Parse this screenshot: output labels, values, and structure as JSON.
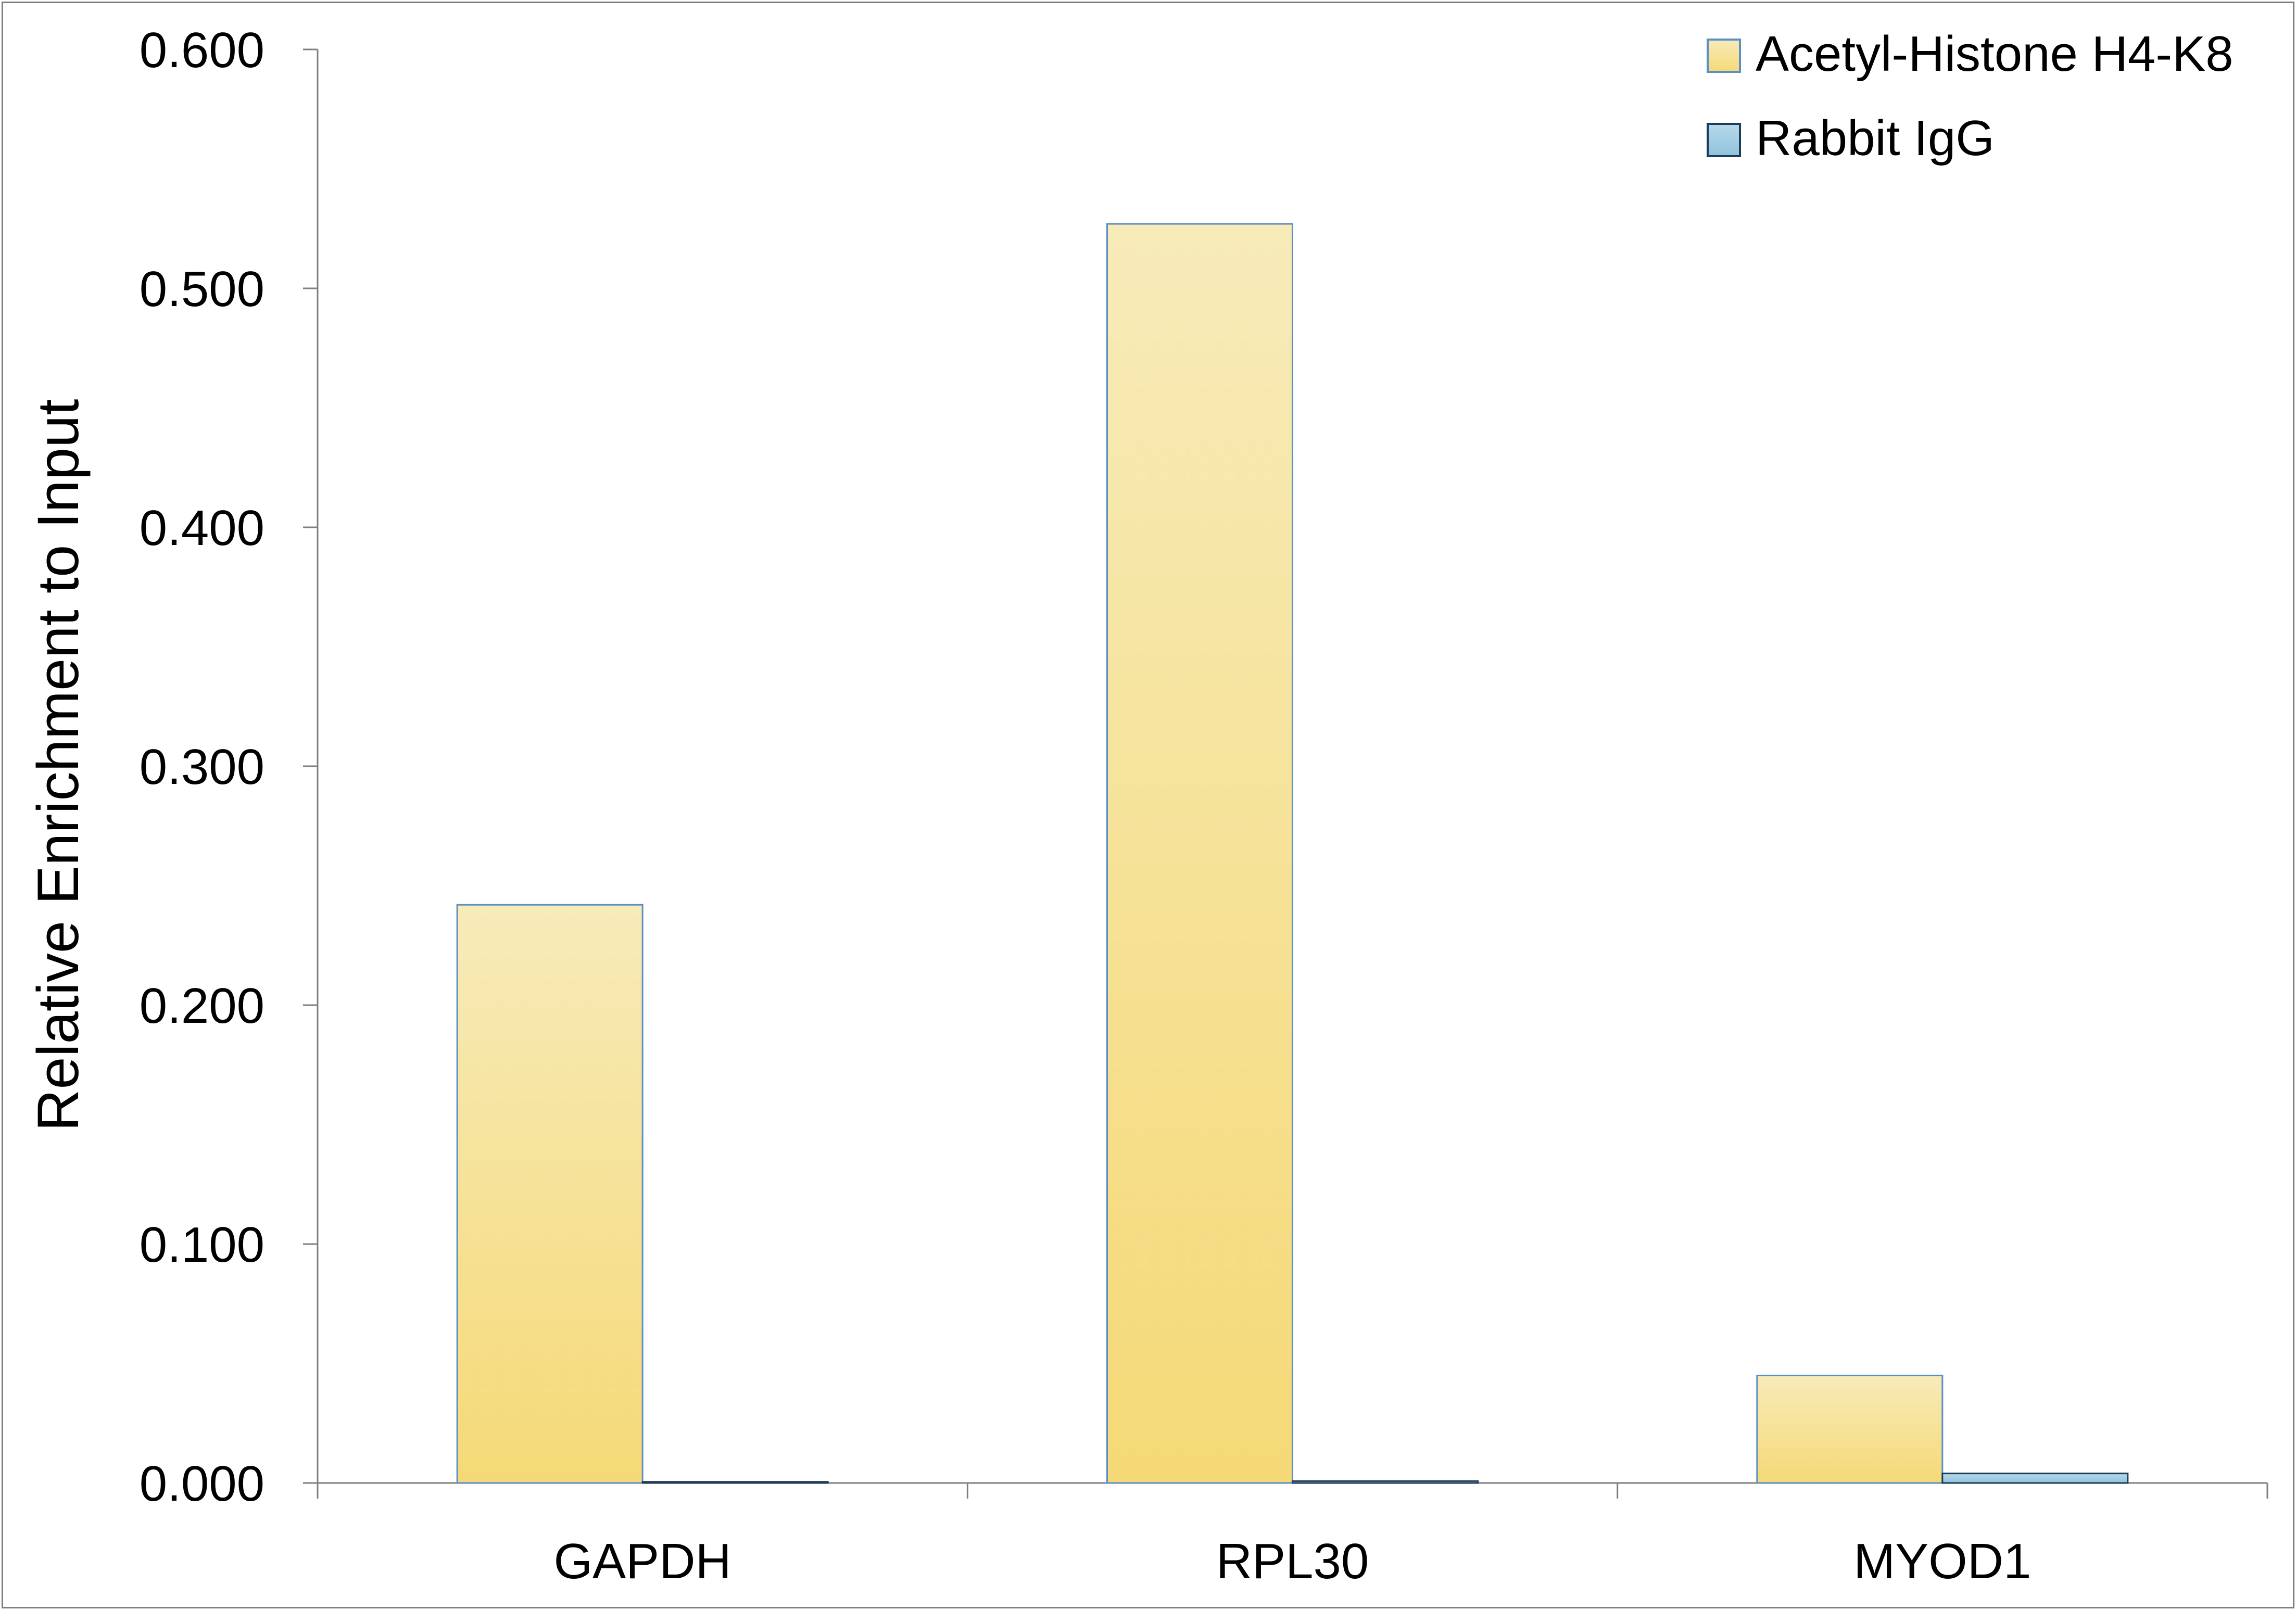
{
  "chart_data": {
    "type": "bar",
    "title": "",
    "xlabel": "",
    "ylabel": "Relative Enrichment to Input",
    "ylim": [
      0,
      0.6
    ],
    "yticks": [
      "0.000",
      "0.100",
      "0.200",
      "0.300",
      "0.400",
      "0.500",
      "0.600"
    ],
    "categories": [
      "GAPDH",
      "RPL30",
      "MYOD1"
    ],
    "series": [
      {
        "name": "Acetyl-Histone H4-K8",
        "values": [
          0.242,
          0.527,
          0.045
        ],
        "color_top": "#f7ebb9",
        "color_bottom": "#f5d977",
        "border": "#5b8fc7"
      },
      {
        "name": "Rabbit IgG",
        "values": [
          0.0005,
          0.0008,
          0.004
        ],
        "color_top": "#b8d9ea",
        "color_bottom": "#8fc3dc",
        "border": "#1f3b5a"
      }
    ],
    "grid": false,
    "legend_position": "top-right"
  }
}
